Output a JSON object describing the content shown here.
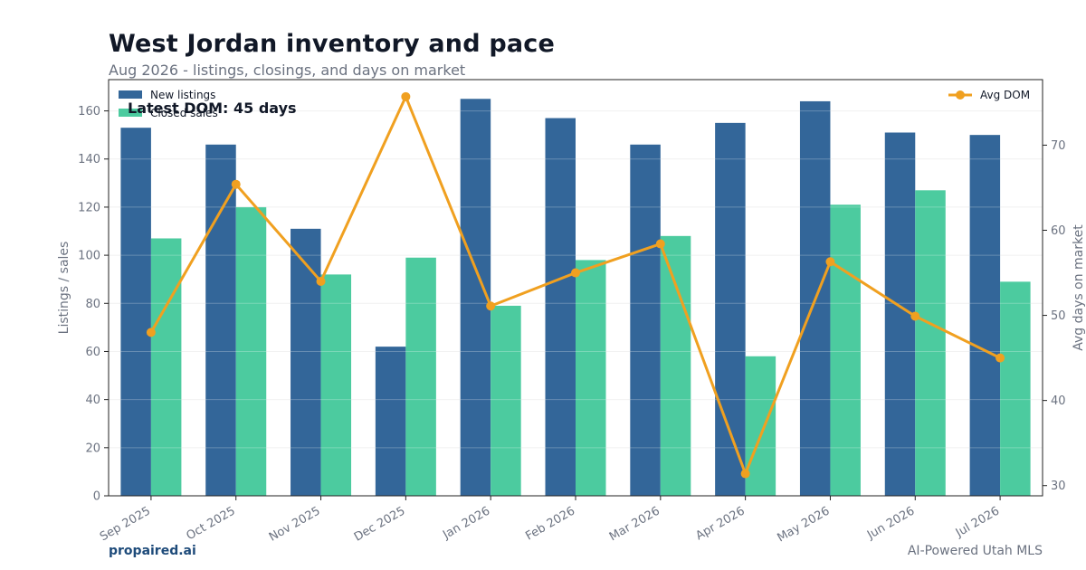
{
  "header": {
    "title": "West Jordan inventory and pace",
    "subtitle": "Aug 2026 - listings, closings, and days on market"
  },
  "footer": {
    "brand": "propaired.ai",
    "tagline": "AI-Powered Utah MLS"
  },
  "colors": {
    "new_listings": "#336699",
    "closed_sales": "#4ccb9f",
    "avg_dom": "#f0a020"
  },
  "chart_data": {
    "type": "bar",
    "categories": [
      "Sep 2025",
      "Oct 2025",
      "Nov 2025",
      "Dec 2025",
      "Jan 2026",
      "Feb 2026",
      "Mar 2026",
      "Apr 2026",
      "May 2026",
      "Jun 2026",
      "Jul 2026"
    ],
    "series": [
      {
        "name": "New listings",
        "type": "bar",
        "axis": "left",
        "values": [
          153,
          146,
          111,
          62,
          165,
          157,
          146,
          155,
          164,
          151,
          150
        ]
      },
      {
        "name": "Closed sales",
        "type": "bar",
        "axis": "left",
        "values": [
          107,
          120,
          92,
          99,
          79,
          98,
          108,
          58,
          121,
          127,
          89
        ]
      },
      {
        "name": "Avg DOM",
        "type": "line",
        "axis": "right",
        "values": [
          48,
          65.4,
          54,
          75.7,
          51.1,
          55,
          58.4,
          31.4,
          56.3,
          49.9,
          45
        ]
      }
    ],
    "ylabel": "Listings / sales",
    "y2label": "Avg days on market",
    "ylim": [
      0,
      173
    ],
    "y2lim": [
      28.8,
      77.7
    ],
    "yticks": [
      0,
      20,
      40,
      60,
      80,
      100,
      120,
      140,
      160
    ],
    "y2ticks": [
      30,
      40,
      50,
      60,
      70
    ],
    "annotation": "Latest DOM: 45 days",
    "legend_left": "top-left",
    "legend_right": "top-right",
    "grid": true
  }
}
